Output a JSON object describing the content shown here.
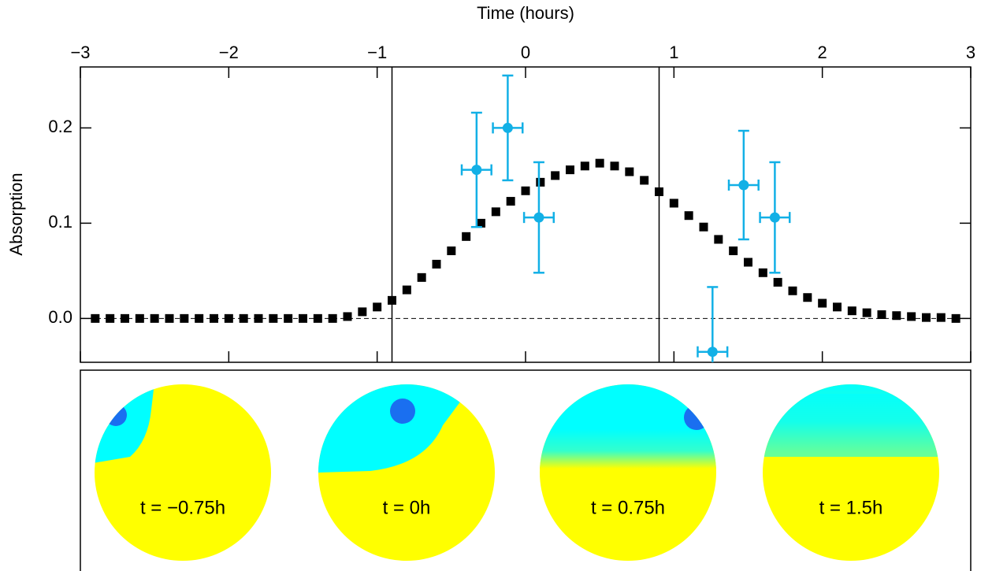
{
  "chart_data": {
    "type": "scatter",
    "x_label": "Time (hours)",
    "y_label": "Absorption",
    "xlim": [
      -3,
      3
    ],
    "ylim": [
      -0.046,
      0.264
    ],
    "xticks": [
      {
        "value": -3,
        "label": "−3"
      },
      {
        "value": -2,
        "label": "−2"
      },
      {
        "value": -1,
        "label": "−1"
      },
      0,
      1,
      2,
      3
    ],
    "yticks": [
      {
        "value": 0,
        "label": "0.0"
      },
      0.1,
      0.2
    ],
    "vlines": [
      -0.9,
      0.9
    ],
    "hline": 0,
    "series": [
      {
        "marker": "square",
        "color": "#000000",
        "x": [
          -2.9,
          -2.8,
          -2.7,
          -2.6,
          -2.5,
          -2.4,
          -2.3,
          -2.2,
          -2.1,
          -2.0,
          -1.9,
          -1.8,
          -1.7,
          -1.6,
          -1.5,
          -1.4,
          -1.3,
          -1.2,
          -1.1,
          -1.0,
          -0.9,
          -0.8,
          -0.7,
          -0.6,
          -0.5,
          -0.4,
          -0.3,
          -0.2,
          -0.1,
          0.0,
          0.1,
          0.2,
          0.3,
          0.4,
          0.5,
          0.6,
          0.7,
          0.8,
          0.9,
          1.0,
          1.1,
          1.2,
          1.3,
          1.4,
          1.5,
          1.6,
          1.7,
          1.8,
          1.9,
          2.0,
          2.1,
          2.2,
          2.3,
          2.4,
          2.5,
          2.6,
          2.7,
          2.8,
          2.9
        ],
        "values": [
          0,
          0,
          0,
          0,
          0,
          0,
          0,
          0,
          0,
          0,
          0,
          0,
          0,
          0,
          0,
          0,
          0,
          0.002,
          0.007,
          0.012,
          0.019,
          0.03,
          0.043,
          0.057,
          0.071,
          0.086,
          0.1,
          0.112,
          0.123,
          0.134,
          0.143,
          0.15,
          0.156,
          0.16,
          0.163,
          0.16,
          0.154,
          0.145,
          0.133,
          0.121,
          0.108,
          0.096,
          0.083,
          0.071,
          0.059,
          0.048,
          0.038,
          0.029,
          0.022,
          0.016,
          0.012,
          0.008,
          0.006,
          0.004,
          0.003,
          0.002,
          0.001,
          0.001,
          0
        ]
      },
      {
        "marker": "circle",
        "color": "#12b0e6",
        "x": [
          -0.33,
          -0.12,
          0.09,
          1.26,
          1.47,
          1.68
        ],
        "values": [
          0.156,
          0.2,
          0.106,
          -0.035,
          0.14,
          0.106
        ],
        "xerr": [
          0.1,
          0.1,
          0.1,
          0.1,
          0.1,
          0.1
        ],
        "yerr": [
          0.06,
          0.055,
          0.058,
          0.068,
          0.057,
          0.058
        ]
      }
    ]
  },
  "panels": [
    {
      "label": "t = −0.75h"
    },
    {
      "label": "t = 0h"
    },
    {
      "label": "t = 0.75h"
    },
    {
      "label": "t = 1.5h"
    }
  ]
}
